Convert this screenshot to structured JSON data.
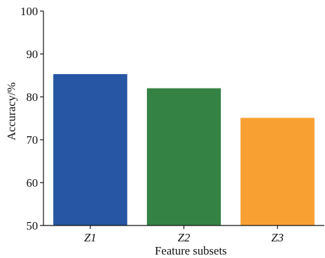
{
  "chart_data": {
    "type": "bar",
    "categories": [
      "Z1",
      "Z2",
      "Z3"
    ],
    "values": [
      85.3,
      82.0,
      75.1
    ],
    "colors": [
      "#2656a4",
      "#358344",
      "#f9a032"
    ],
    "xlabel": "Feature subsets",
    "ylabel": "Accuracy/%",
    "ylim": [
      50,
      100
    ],
    "yticks": [
      50,
      60,
      70,
      80,
      90,
      100
    ],
    "grid": false,
    "legend": "none"
  }
}
